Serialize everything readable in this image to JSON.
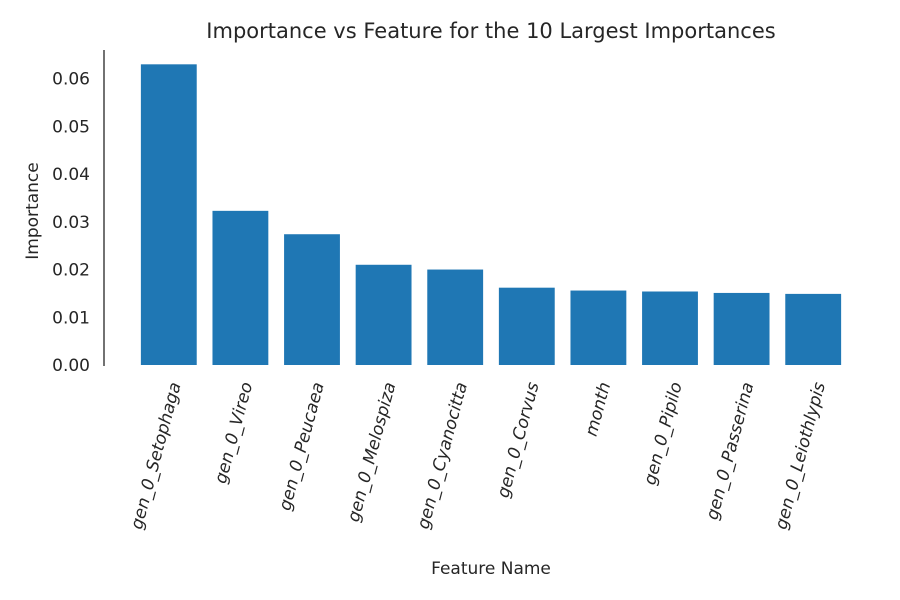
{
  "chart_data": {
    "type": "bar",
    "title": "Importance vs Feature for the 10 Largest Importances",
    "xlabel": "Feature Name",
    "ylabel": "Importance",
    "categories": [
      "gen_0_Setophaga",
      "gen_0_Vireo",
      "gen_0_Peucaea",
      "gen_0_Melospiza",
      "gen_0_Cyanocitta",
      "gen_0_Corvus",
      "month",
      "gen_0_Pipilo",
      "gen_0_Passerina",
      "gen_0_Leiothlypis"
    ],
    "values": [
      0.063,
      0.0323,
      0.0274,
      0.021,
      0.02,
      0.0162,
      0.0156,
      0.0154,
      0.0151,
      0.0149
    ],
    "yticks": [
      "0.00",
      "0.01",
      "0.02",
      "0.03",
      "0.04",
      "0.05",
      "0.06"
    ],
    "ylim": [
      0,
      0.066
    ],
    "grid": false,
    "bar_color": "#1f77b4"
  }
}
